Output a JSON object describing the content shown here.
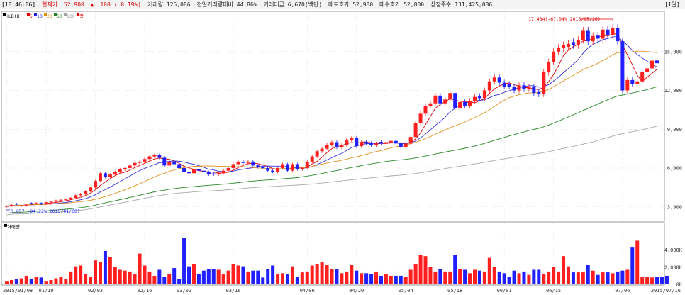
{
  "status": {
    "time": "[10:46:06]",
    "price_label": "현재가",
    "price": "52,900",
    "change_arrow": "▲",
    "change": "100 ( 0.19%)",
    "volume": "거래량 125,086",
    "prev_volume_ratio": "전일거래량대비 44.86%",
    "amount": "거래대금 6,670(백만)",
    "ask": "매도호가 52,900",
    "bid": "매수호가 52,800",
    "shares": "상장주수 131,425,086",
    "mode": "[1일]"
  },
  "legend": {
    "label": "▀HLB(K)",
    "items": [
      {
        "text": "▀5",
        "color": "#e00000"
      },
      {
        "text": "▀10",
        "color": "#2020e0"
      },
      {
        "text": "▀20",
        "color": "#e08c00"
      },
      {
        "text": "▀60",
        "color": "#208020"
      },
      {
        "text": "▀120",
        "color": "#a0a0a0"
      },
      {
        "text": "▀락",
        "color": "#e00000"
      }
    ]
  },
  "volume_legend": "▀거래량",
  "annotations": {
    "high": "17,434(-67.04% 2015/05/26)",
    "low": "3,057(-94.22% 2015/01/08)"
  },
  "colors": {
    "up": "#ff1f1f",
    "down": "#1f1fff",
    "ma5": "#e00000",
    "ma10": "#3030e0",
    "ma20": "#e09020",
    "ma60": "#2a8a2a",
    "ma120": "#a8a8a8",
    "grid": "#d8d8d8"
  },
  "chart_data": [
    {
      "type": "candlestick",
      "title": "HLB(K)",
      "ylim": [
        2000,
        18000
      ],
      "yticks": [
        "15,000",
        "12,000",
        "9,000",
        "6,000",
        "3,000"
      ],
      "ytick_values": [
        15000,
        12000,
        9000,
        6000,
        3000
      ],
      "xticks": [
        "2015/01/08",
        "01/19",
        "02/02",
        "02/16",
        "03/02",
        "03/16",
        "04/06",
        "04/20",
        "05/04",
        "05/18",
        "06/01",
        "06/15",
        "07/06",
        "2015/07/16"
      ],
      "xtick_index": [
        0,
        8,
        18,
        28,
        36,
        46,
        61,
        71,
        81,
        91,
        101,
        111,
        125,
        133
      ],
      "ohlc_close": [
        3060,
        3150,
        3200,
        3100,
        3180,
        3250,
        3300,
        3200,
        3350,
        3400,
        3500,
        3550,
        3600,
        3700,
        3900,
        4000,
        4200,
        4500,
        5000,
        5600,
        5300,
        5500,
        5700,
        5900,
        6000,
        6200,
        6400,
        6500,
        6700,
        6900,
        7000,
        6800,
        6200,
        6500,
        6300,
        6000,
        5700,
        5600,
        5900,
        5800,
        5700,
        5500,
        5500,
        5600,
        5800,
        6000,
        6300,
        6500,
        6400,
        6500,
        6200,
        6100,
        6000,
        5800,
        5700,
        6000,
        6300,
        5800,
        6300,
        5900,
        6000,
        6500,
        6900,
        7300,
        7500,
        7800,
        8000,
        7600,
        7800,
        8200,
        8300,
        7700,
        8000,
        7900,
        7800,
        7900,
        7900,
        8000,
        8100,
        7900,
        7600,
        7900,
        8400,
        9500,
        10200,
        10800,
        11000,
        11600,
        11000,
        11300,
        11800,
        10600,
        11100,
        10800,
        11200,
        11500,
        11400,
        12000,
        12700,
        13000,
        12600,
        12300,
        12300,
        12000,
        12400,
        12100,
        12300,
        11800,
        11700,
        13400,
        14200,
        15000,
        15300,
        15500,
        15600,
        15500,
        15900,
        16600,
        15800,
        16200,
        16000,
        16700,
        16300,
        16800,
        15800,
        12000,
        12800,
        12500,
        12700,
        13400,
        13700,
        14300,
        14100
      ],
      "x_from": "2015/01/08",
      "x_to": "2015/07/16",
      "high_point": {
        "date": "2015/05/26",
        "value": 17434
      },
      "low_point": {
        "date": "2015/01/08",
        "value": 3057
      }
    },
    {
      "type": "bar",
      "title": "거래량",
      "yticks": [
        "4,000K",
        "2,000K",
        "0K"
      ],
      "ytick_values": [
        4000,
        2000,
        0
      ],
      "ylim": [
        0,
        5800
      ],
      "values": [
        400,
        500,
        600,
        700,
        1000,
        600,
        900,
        800,
        400,
        500,
        700,
        900,
        600,
        1500,
        2100,
        2200,
        1200,
        900,
        2800,
        2600,
        3900,
        3200,
        2000,
        1700,
        1600,
        1500,
        1200,
        3600,
        2200,
        1500,
        1000,
        1700,
        900,
        1200,
        1900,
        600,
        5400,
        2100,
        2400,
        1200,
        1600,
        1800,
        1800,
        1700,
        1200,
        1600,
        2400,
        2200,
        2100,
        1500,
        1600,
        1600,
        800,
        1800,
        2200,
        1200,
        1300,
        1200,
        2100,
        900,
        1400,
        1500,
        2200,
        2400,
        2600,
        2300,
        1800,
        1800,
        1300,
        1500,
        2300,
        1600,
        1300,
        1300,
        1200,
        1400,
        1000,
        1200,
        1000,
        1000,
        1000,
        900,
        1700,
        2400,
        3400,
        3300,
        2000,
        1500,
        1800,
        1500,
        1500,
        3400,
        1800,
        1700,
        1300,
        1700,
        1600,
        1500,
        3100,
        2000,
        1500,
        1300,
        900,
        1600,
        1300,
        1500,
        1100,
        1700,
        1700,
        1200,
        1500,
        2000,
        1500,
        3300,
        2100,
        1400,
        1400,
        1400,
        2300,
        1600,
        1100,
        1400,
        1400,
        1300,
        1500,
        1600,
        1700,
        4300,
        5100,
        900,
        900,
        800,
        900,
        900,
        1000
      ],
      "up": [
        1,
        1,
        0,
        1,
        1,
        0,
        1,
        0,
        1,
        1,
        1,
        1,
        1,
        1,
        1,
        1,
        1,
        1,
        1,
        1,
        0,
        1,
        1,
        1,
        1,
        1,
        1,
        1,
        1,
        1,
        1,
        0,
        0,
        1,
        0,
        0,
        0,
        0,
        1,
        0,
        0,
        0,
        0,
        1,
        1,
        1,
        1,
        1,
        0,
        1,
        0,
        0,
        0,
        0,
        0,
        1,
        1,
        0,
        1,
        0,
        1,
        1,
        1,
        1,
        1,
        1,
        1,
        0,
        1,
        1,
        1,
        0,
        1,
        0,
        0,
        1,
        0,
        1,
        1,
        0,
        0,
        1,
        1,
        1,
        1,
        1,
        1,
        1,
        0,
        1,
        1,
        0,
        1,
        0,
        1,
        1,
        0,
        1,
        1,
        1,
        0,
        0,
        0,
        0,
        1,
        0,
        1,
        0,
        0,
        1,
        1,
        1,
        1,
        1,
        1,
        0,
        1,
        1,
        0,
        1,
        0,
        1,
        0,
        1,
        0,
        0,
        1,
        0,
        1,
        1,
        1,
        1,
        0
      ]
    }
  ]
}
